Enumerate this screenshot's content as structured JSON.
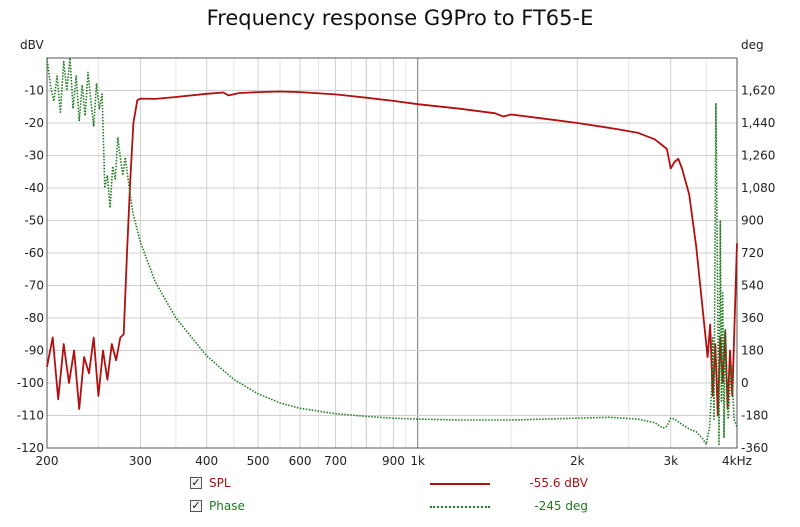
{
  "chart_data": {
    "type": "line",
    "title": "Frequency response G9Pro to FT65-E",
    "x_scale": "log",
    "xlim": [
      200,
      4000
    ],
    "x_ticks": [
      {
        "value": 200,
        "label": "200"
      },
      {
        "value": 300,
        "label": "300"
      },
      {
        "value": 400,
        "label": "400"
      },
      {
        "value": 500,
        "label": "500"
      },
      {
        "value": 600,
        "label": "600"
      },
      {
        "value": 700,
        "label": "700"
      },
      {
        "value": 900,
        "label": "900"
      },
      {
        "value": 1000,
        "label": "1k"
      },
      {
        "value": 2000,
        "label": "2k"
      },
      {
        "value": 3000,
        "label": "3k"
      },
      {
        "value": 4000,
        "label": "4kHz"
      }
    ],
    "y_left": {
      "unit": "dBV",
      "lim": [
        -120,
        0
      ],
      "ticks": [
        -10,
        -20,
        -30,
        -40,
        -50,
        -60,
        -70,
        -80,
        -90,
        -100,
        -110,
        -120
      ]
    },
    "y_right": {
      "unit": "deg",
      "lim": [
        -360,
        1800
      ],
      "ticks": [
        {
          "value": 1620,
          "label": "1,620"
        },
        {
          "value": 1440,
          "label": "1,440"
        },
        {
          "value": 1260,
          "label": "1,260"
        },
        {
          "value": 1080,
          "label": "1,080"
        },
        {
          "value": 900,
          "label": "900"
        },
        {
          "value": 720,
          "label": "720"
        },
        {
          "value": 540,
          "label": "540"
        },
        {
          "value": 360,
          "label": "360"
        },
        {
          "value": 180,
          "label": "180"
        },
        {
          "value": 0,
          "label": "0"
        },
        {
          "value": -180,
          "label": "-180"
        },
        {
          "value": -360,
          "label": "-360"
        }
      ]
    },
    "grid": true,
    "legend_placement": "bottom",
    "series": [
      {
        "name": "SPL",
        "axis": "left",
        "color": "#b01010",
        "style": "solid",
        "legend_value": "-55.6 dBV",
        "points": [
          [
            200,
            -95
          ],
          [
            205,
            -86
          ],
          [
            210,
            -105
          ],
          [
            215,
            -88
          ],
          [
            220,
            -100
          ],
          [
            225,
            -90
          ],
          [
            230,
            -108
          ],
          [
            235,
            -92
          ],
          [
            240,
            -97
          ],
          [
            245,
            -86
          ],
          [
            250,
            -104
          ],
          [
            255,
            -90
          ],
          [
            260,
            -99
          ],
          [
            265,
            -88
          ],
          [
            270,
            -93
          ],
          [
            275,
            -86
          ],
          [
            279,
            -85
          ],
          [
            283,
            -60
          ],
          [
            287,
            -38
          ],
          [
            291,
            -20
          ],
          [
            296,
            -13
          ],
          [
            300,
            -12.5
          ],
          [
            320,
            -12.6
          ],
          [
            350,
            -12
          ],
          [
            400,
            -11
          ],
          [
            430,
            -10.6
          ],
          [
            440,
            -11.5
          ],
          [
            460,
            -10.8
          ],
          [
            500,
            -10.5
          ],
          [
            550,
            -10.3
          ],
          [
            600,
            -10.5
          ],
          [
            700,
            -11.2
          ],
          [
            800,
            -12.2
          ],
          [
            900,
            -13.2
          ],
          [
            1000,
            -14.2
          ],
          [
            1200,
            -15.6
          ],
          [
            1400,
            -17
          ],
          [
            1450,
            -18
          ],
          [
            1500,
            -17.4
          ],
          [
            1800,
            -19
          ],
          [
            2000,
            -20
          ],
          [
            2200,
            -21
          ],
          [
            2400,
            -22
          ],
          [
            2600,
            -23
          ],
          [
            2800,
            -25
          ],
          [
            2950,
            -28
          ],
          [
            3000,
            -34
          ],
          [
            3050,
            -32
          ],
          [
            3100,
            -31
          ],
          [
            3150,
            -34
          ],
          [
            3250,
            -42
          ],
          [
            3350,
            -58
          ],
          [
            3450,
            -78
          ],
          [
            3520,
            -92
          ],
          [
            3560,
            -82
          ],
          [
            3600,
            -104
          ],
          [
            3640,
            -88
          ],
          [
            3680,
            -110
          ],
          [
            3720,
            -86
          ],
          [
            3760,
            -100
          ],
          [
            3800,
            -84
          ],
          [
            3840,
            -108
          ],
          [
            3880,
            -90
          ],
          [
            3920,
            -104
          ],
          [
            3960,
            -80
          ],
          [
            4000,
            -57
          ]
        ]
      },
      {
        "name": "Phase",
        "axis": "right",
        "color": "#1e7a1e",
        "style": "dotted",
        "legend_value": "-245 deg",
        "points": [
          [
            200,
            1800
          ],
          [
            203,
            1650
          ],
          [
            206,
            1560
          ],
          [
            209,
            1700
          ],
          [
            212,
            1500
          ],
          [
            215,
            1780
          ],
          [
            218,
            1620
          ],
          [
            221,
            1800
          ],
          [
            224,
            1520
          ],
          [
            227,
            1700
          ],
          [
            230,
            1450
          ],
          [
            233,
            1650
          ],
          [
            236,
            1480
          ],
          [
            239,
            1720
          ],
          [
            242,
            1560
          ],
          [
            245,
            1420
          ],
          [
            248,
            1660
          ],
          [
            251,
            1520
          ],
          [
            254,
            1600
          ],
          [
            257,
            1080
          ],
          [
            260,
            1150
          ],
          [
            263,
            970
          ],
          [
            266,
            1200
          ],
          [
            269,
            1130
          ],
          [
            272,
            1360
          ],
          [
            275,
            1250
          ],
          [
            278,
            1150
          ],
          [
            281,
            1250
          ],
          [
            284,
            1140
          ],
          [
            290,
            950
          ],
          [
            300,
            780
          ],
          [
            320,
            560
          ],
          [
            350,
            360
          ],
          [
            400,
            150
          ],
          [
            450,
            20
          ],
          [
            500,
            -60
          ],
          [
            550,
            -110
          ],
          [
            600,
            -140
          ],
          [
            700,
            -170
          ],
          [
            800,
            -185
          ],
          [
            900,
            -195
          ],
          [
            1000,
            -200
          ],
          [
            1200,
            -205
          ],
          [
            1500,
            -205
          ],
          [
            2000,
            -195
          ],
          [
            2300,
            -190
          ],
          [
            2600,
            -200
          ],
          [
            2800,
            -220
          ],
          [
            2900,
            -250
          ],
          [
            2950,
            -240
          ],
          [
            3000,
            -195
          ],
          [
            3050,
            -200
          ],
          [
            3150,
            -230
          ],
          [
            3250,
            -255
          ],
          [
            3350,
            -270
          ],
          [
            3450,
            -310
          ],
          [
            3500,
            -340
          ],
          [
            3550,
            -250
          ],
          [
            3580,
            -60
          ],
          [
            3600,
            250
          ],
          [
            3620,
            -200
          ],
          [
            3650,
            1550
          ],
          [
            3680,
            400
          ],
          [
            3700,
            -340
          ],
          [
            3720,
            900
          ],
          [
            3740,
            -100
          ],
          [
            3760,
            500
          ],
          [
            3780,
            -300
          ],
          [
            3800,
            300
          ],
          [
            3850,
            -200
          ],
          [
            3900,
            100
          ],
          [
            3950,
            -200
          ],
          [
            4000,
            -245
          ]
        ]
      }
    ]
  },
  "legend": {
    "items": [
      {
        "label": "SPL",
        "checked": "✓",
        "value": "-55.6 dBV"
      },
      {
        "label": "Phase",
        "checked": "✓",
        "value": "-245 deg"
      }
    ]
  },
  "colors": {
    "spl": "#b01010",
    "phase": "#1e7a1e",
    "grid_major": "#888888",
    "grid_minor": "#d0d0d0"
  }
}
